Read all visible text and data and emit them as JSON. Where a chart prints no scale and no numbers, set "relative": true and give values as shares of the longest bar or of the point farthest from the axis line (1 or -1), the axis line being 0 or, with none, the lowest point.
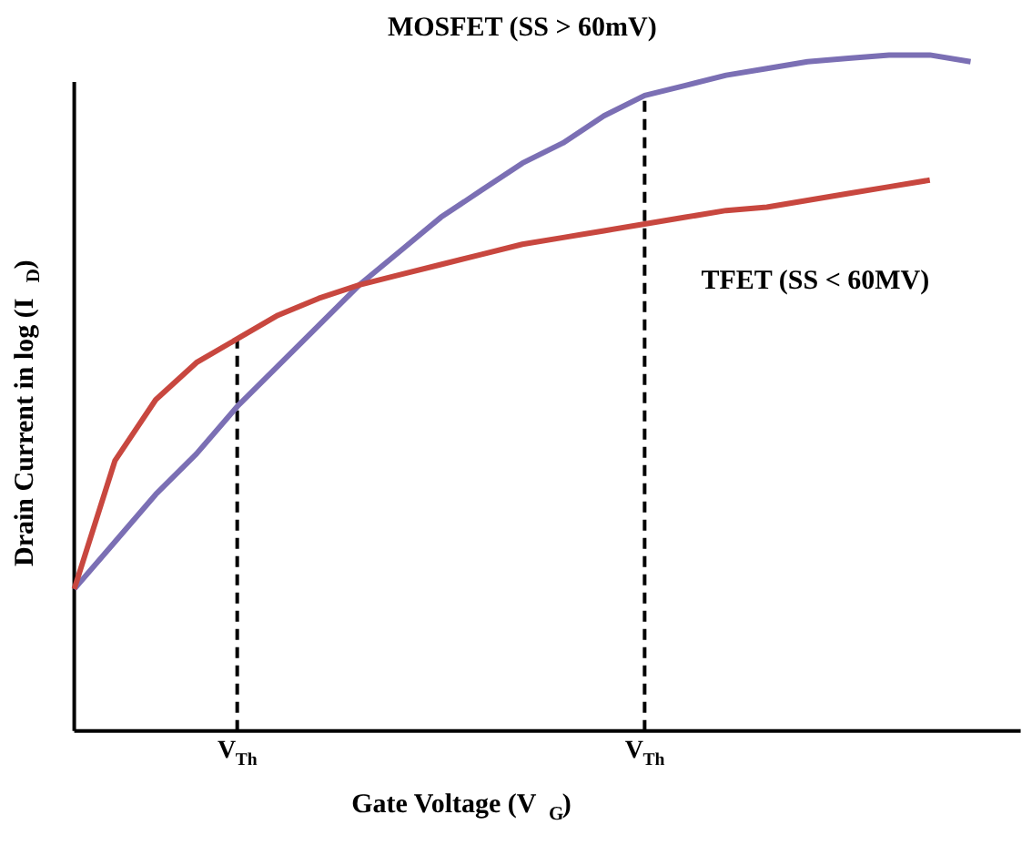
{
  "chart_data": {
    "type": "line",
    "relative": true,
    "xlabel": "Gate Voltage (V$_{G}$)",
    "ylabel": "Drain Current in log (I$_{D}$)",
    "tick_labels": "x",
    "grid": "x",
    "line_style": "solid",
    "marker": "none",
    "categories": [
      null,
      null,
      null,
      null,
      "V$_{Th}$",
      null,
      null,
      null,
      null,
      null,
      null,
      null,
      null,
      null,
      "V$_{Th}$",
      null,
      null,
      null,
      null,
      null,
      null,
      null,
      null
    ],
    "series": [
      {
        "name": "MOSFET (SS > 60mV)",
        "color": "#7b6fb4",
        "values": [
          0.21,
          0.28,
          0.35,
          0.41,
          0.48,
          0.54,
          0.6,
          0.66,
          0.71,
          0.76,
          0.8,
          0.84,
          0.87,
          0.91,
          0.94,
          0.955,
          0.97,
          0.98,
          0.99,
          0.995,
          1.0,
          1.0,
          0.99
        ]
      },
      {
        "name": "TFET (SS < 60MV)",
        "color": "#c8473f",
        "values": [
          0.21,
          0.4,
          0.49,
          0.545,
          0.58,
          0.615,
          0.64,
          0.66,
          0.675,
          0.69,
          0.705,
          0.72,
          0.73,
          0.74,
          0.75,
          0.76,
          0.77,
          0.775,
          0.785,
          0.795,
          0.805,
          0.815,
          null
        ]
      }
    ]
  }
}
